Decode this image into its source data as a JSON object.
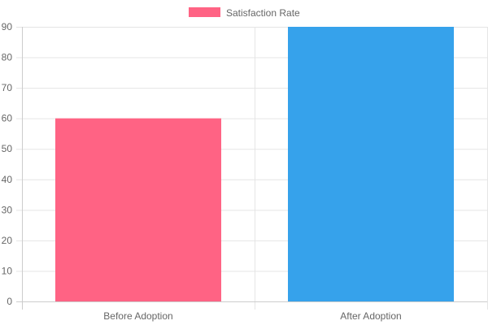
{
  "chart_data": {
    "type": "bar",
    "categories": [
      "Before Adoption",
      "After Adoption"
    ],
    "series": [
      {
        "name": "Satisfaction Rate",
        "values": [
          60,
          90
        ],
        "colors": [
          "#ff6384",
          "#36a2eb"
        ]
      }
    ],
    "legend": {
      "position": "top",
      "swatch_color": "#ff6384"
    },
    "ylim": [
      0,
      90
    ],
    "yticks": [
      0,
      10,
      20,
      30,
      40,
      50,
      60,
      70,
      80,
      90
    ],
    "grid": true,
    "grid_color": "#e5e5e5",
    "axis_label_color": "#666666"
  }
}
